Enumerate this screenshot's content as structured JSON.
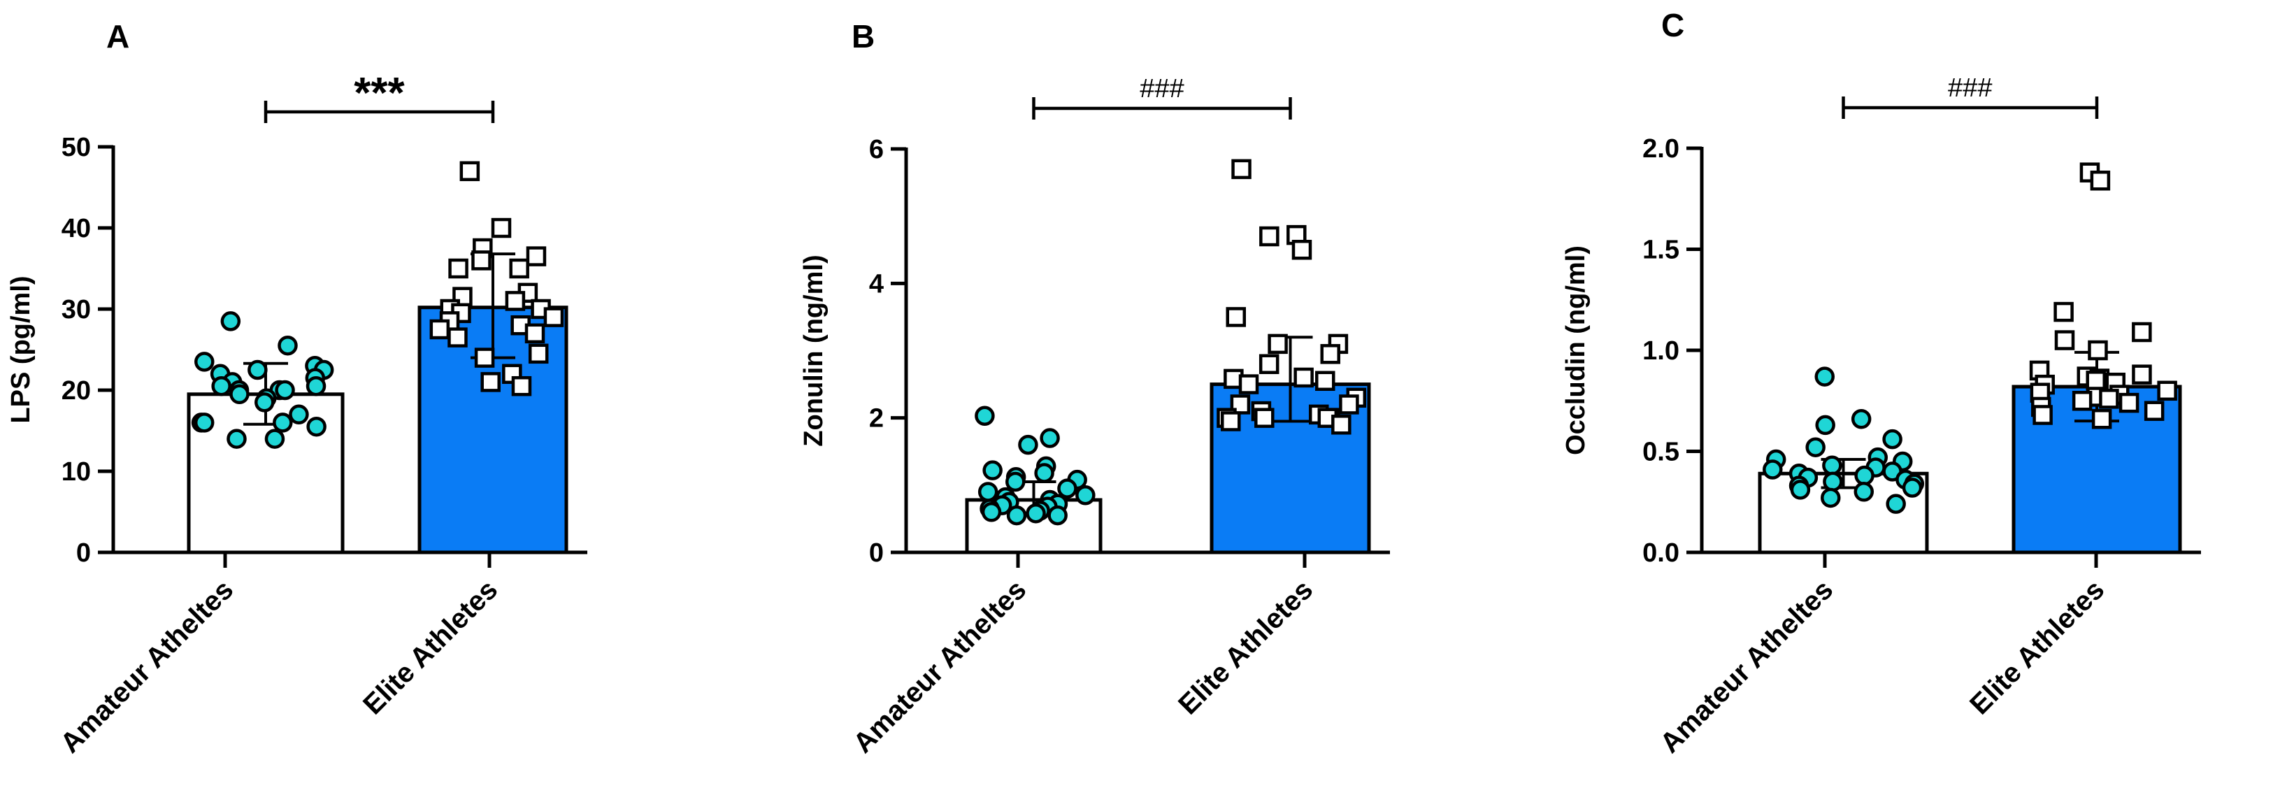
{
  "chart_data": [
    {
      "panel": "A",
      "type": "bar",
      "categories": [
        "Amateur Atheltes",
        "Elite Athletes"
      ],
      "ylabel": "LPS (pg/ml)",
      "ylim": [
        0,
        50
      ],
      "yticks": [
        "0",
        "10",
        "20",
        "30",
        "40",
        "50"
      ],
      "significance": "***",
      "series": [
        {
          "name": "Amateur Atheltes",
          "mean": 19.5,
          "sd_low": 15.8,
          "sd_high": 23.3,
          "bar_color": "#ffffff",
          "marker": "circle",
          "marker_color": "#1fd6d6",
          "points": [
            28.5,
            25.5,
            23.5,
            23,
            22.5,
            22.5,
            22,
            21.5,
            21,
            20.5,
            20.5,
            20,
            20,
            20,
            19.5,
            19,
            18.5,
            17,
            16,
            16,
            16,
            15.5,
            14,
            14
          ]
        },
        {
          "name": "Elite Athletes",
          "mean": 30.2,
          "sd_low": 24,
          "sd_high": 36.8,
          "bar_color": "#0a7cf5",
          "marker": "square",
          "marker_color": "#ffffff",
          "points": [
            47,
            40,
            37.5,
            36.5,
            36,
            35,
            35,
            32,
            31.5,
            31,
            30,
            30,
            29.5,
            29,
            28.5,
            28,
            27.5,
            27,
            26.5,
            24.5,
            24,
            22,
            21,
            20.5
          ]
        }
      ]
    },
    {
      "panel": "B",
      "type": "bar",
      "categories": [
        "Amateur Atheltes",
        "Elite Athletes"
      ],
      "ylabel": "Zonulin (ng/ml)",
      "ylim": [
        0,
        6
      ],
      "yticks": [
        "0",
        "2",
        "4",
        "6"
      ],
      "significance": "###",
      "series": [
        {
          "name": "Amateur Atheltes",
          "mean": 0.78,
          "sd_low": 0.58,
          "sd_high": 1.05,
          "bar_color": "#ffffff",
          "marker": "circle",
          "marker_color": "#1fd6d6",
          "points": [
            2.03,
            1.7,
            1.6,
            1.28,
            1.22,
            1.18,
            1.12,
            1.08,
            1.05,
            0.95,
            0.9,
            0.85,
            0.82,
            0.78,
            0.75,
            0.72,
            0.7,
            0.68,
            0.65,
            0.62,
            0.6,
            0.58,
            0.55,
            0.55
          ]
        },
        {
          "name": "Elite Athletes",
          "mean": 2.5,
          "sd_low": 1.95,
          "sd_high": 3.2,
          "bar_color": "#0a7cf5",
          "marker": "square",
          "marker_color": "#ffffff",
          "points": [
            5.7,
            4.72,
            4.7,
            4.5,
            3.5,
            3.1,
            3.1,
            2.95,
            2.8,
            2.6,
            2.58,
            2.55,
            2.5,
            2.3,
            2.2,
            2.2,
            2.1,
            2.05,
            2.0,
            2.0,
            2.0,
            2.0,
            1.95,
            1.9
          ]
        }
      ]
    },
    {
      "panel": "C",
      "type": "bar",
      "categories": [
        "Amateur Atheltes",
        "Elite Athletes"
      ],
      "ylabel": "Occludin (ng/ml)",
      "ylim": [
        0,
        2.0
      ],
      "yticks": [
        "0.0",
        "0.5",
        "1.0",
        "1.5",
        "2.0"
      ],
      "significance": "###",
      "series": [
        {
          "name": "Amateur Atheltes",
          "mean": 0.39,
          "sd_low": 0.32,
          "sd_high": 0.46,
          "bar_color": "#ffffff",
          "marker": "circle",
          "marker_color": "#1fd6d6",
          "points": [
            0.87,
            0.66,
            0.63,
            0.56,
            0.52,
            0.47,
            0.46,
            0.45,
            0.43,
            0.42,
            0.41,
            0.4,
            0.39,
            0.38,
            0.37,
            0.36,
            0.35,
            0.34,
            0.33,
            0.32,
            0.31,
            0.3,
            0.27,
            0.24
          ]
        },
        {
          "name": "Elite Athletes",
          "mean": 0.82,
          "sd_low": 0.65,
          "sd_high": 0.99,
          "bar_color": "#0a7cf5",
          "marker": "square",
          "marker_color": "#ffffff",
          "points": [
            1.88,
            1.84,
            1.19,
            1.09,
            1.05,
            1.0,
            0.9,
            0.88,
            0.87,
            0.86,
            0.85,
            0.84,
            0.83,
            0.8,
            0.79,
            0.78,
            0.77,
            0.76,
            0.75,
            0.74,
            0.72,
            0.7,
            0.68,
            0.66
          ]
        }
      ]
    }
  ]
}
